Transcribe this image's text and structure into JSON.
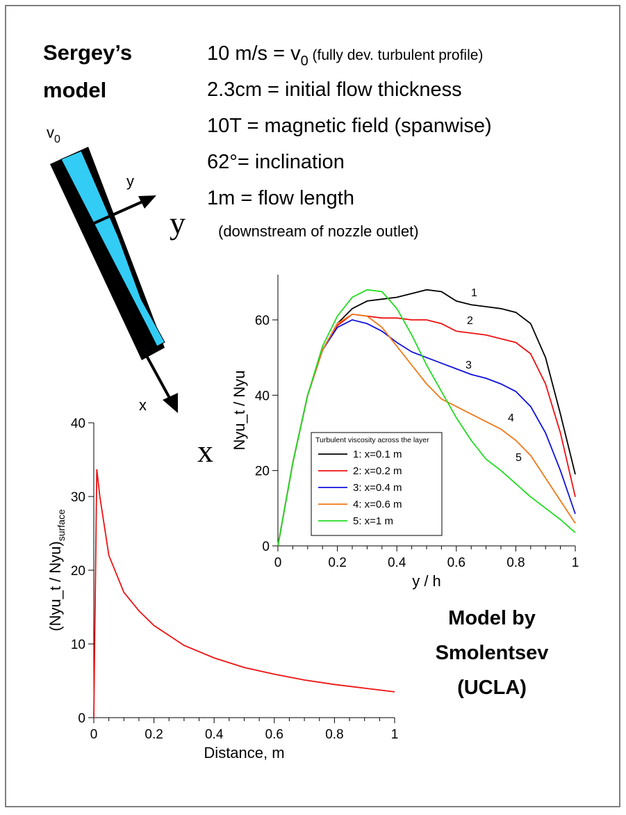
{
  "header": {
    "title_lines": [
      "Sergey’s",
      "model"
    ]
  },
  "parameters": [
    {
      "main": "10 m/s = v",
      "sub": "0",
      "tail": " (fully dev. turbulent profile)"
    },
    {
      "main": "2.3cm = initial flow thickness"
    },
    {
      "main": "10T = magnetic field (spanwise)"
    },
    {
      "main": "62°= inclination"
    },
    {
      "main": "1m = flow length"
    },
    {
      "tail": "(downstream of nozzle outlet)"
    }
  ],
  "diagram": {
    "v_label": "v",
    "v_sub": "0",
    "y_small": "y",
    "x_small": "x",
    "y_big": "y",
    "x_big": "x"
  },
  "credit": [
    "Model by",
    "Smolentsev",
    "(UCLA)"
  ],
  "chart_data": [
    {
      "type": "line",
      "xlabel": "y / h",
      "ylabel": "Nyu_t / Nyu",
      "legend_title": "Turbulent viscosity across the layer",
      "legend": "bottom-left",
      "x": [
        0,
        0.05,
        0.1,
        0.15,
        0.2,
        0.25,
        0.3,
        0.35,
        0.4,
        0.45,
        0.5,
        0.55,
        0.6,
        0.65,
        0.7,
        0.75,
        0.8,
        0.85,
        0.9,
        0.95,
        1
      ],
      "xlim": [
        0,
        1
      ],
      "ylim": [
        0,
        72
      ],
      "xticks": [
        0,
        0.2,
        0.4,
        0.6,
        0.8,
        1
      ],
      "yticks": [
        0,
        20,
        40,
        60
      ],
      "series": [
        {
          "name": "1: x=0.1 m",
          "label": "1",
          "color": "#000000",
          "values": [
            0,
            22,
            40,
            52,
            59,
            63,
            65,
            65.5,
            66,
            67,
            68,
            67.5,
            65,
            64,
            63.5,
            63,
            62,
            59,
            50,
            35,
            19
          ]
        },
        {
          "name": "2: x=0.2 m",
          "label": "2",
          "color": "#ee1111",
          "values": [
            0,
            22,
            40,
            52,
            58.5,
            61.5,
            61,
            60.5,
            60.5,
            60,
            60,
            59,
            57,
            56.5,
            56,
            55,
            54,
            51,
            43,
            30,
            13
          ]
        },
        {
          "name": "3: x=0.4 m",
          "label": "3",
          "color": "#1111dd",
          "values": [
            0,
            22,
            40,
            52,
            58,
            60,
            59,
            57,
            54,
            51.5,
            50,
            48.5,
            47,
            45.5,
            44.5,
            43,
            41,
            37,
            30,
            20,
            8.5
          ]
        },
        {
          "name": "4: x=0.6 m",
          "label": "4",
          "color": "#f07818",
          "values": [
            0,
            22,
            40,
            52,
            59,
            61.5,
            61,
            58,
            53,
            48,
            43,
            39,
            37,
            35,
            33,
            31,
            28,
            24,
            18,
            12,
            6
          ]
        },
        {
          "name": "5: x=1 m",
          "label": "5",
          "color": "#22dd22",
          "values": [
            0,
            22,
            40,
            53,
            61,
            66,
            68,
            67.5,
            63,
            56,
            48,
            41,
            34,
            28,
            23,
            20,
            16.5,
            13,
            10,
            7,
            3.5
          ]
        }
      ]
    },
    {
      "type": "line",
      "xlabel": "Distance, m",
      "ylabel": "(Nyu_t / Nyu)",
      "ylabel_sub": "surface",
      "x": [
        0,
        0.01,
        0.02,
        0.05,
        0.1,
        0.15,
        0.2,
        0.3,
        0.4,
        0.5,
        0.6,
        0.7,
        0.8,
        0.9,
        1
      ],
      "xlim": [
        0,
        1
      ],
      "ylim": [
        0,
        40
      ],
      "xticks": [
        0,
        0.2,
        0.4,
        0.6,
        0.8,
        1
      ],
      "yticks": [
        0,
        10,
        20,
        30,
        40
      ],
      "series": [
        {
          "color": "#ee1111",
          "values": [
            0,
            33.7,
            30,
            22,
            17,
            14.5,
            12.5,
            9.8,
            8.1,
            6.8,
            5.9,
            5.1,
            4.5,
            4,
            3.5
          ]
        }
      ]
    }
  ]
}
